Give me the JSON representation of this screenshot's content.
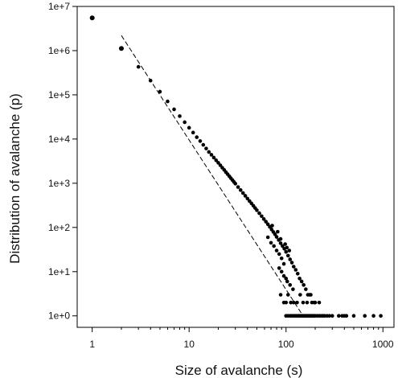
{
  "chart_data": {
    "type": "scatter",
    "title": "",
    "xlabel": "Size of avalanche (s)",
    "ylabel": "Distribution of avalanche (p)",
    "x_scale": "log",
    "y_scale": "log",
    "xlim": [
      0.7,
      1300
    ],
    "ylim": [
      0.55,
      10000000
    ],
    "x_ticks": [
      {
        "value": 1,
        "label": "1"
      },
      {
        "value": 10,
        "label": "10"
      },
      {
        "value": 100,
        "label": "100"
      },
      {
        "value": 1000,
        "label": "1000"
      }
    ],
    "y_ticks": [
      {
        "value": 1,
        "label": "1e+0"
      },
      {
        "value": 10,
        "label": "1e+1"
      },
      {
        "value": 100,
        "label": "1e+2"
      },
      {
        "value": 1000,
        "label": "1e+3"
      },
      {
        "value": 10000,
        "label": "1e+4"
      },
      {
        "value": 100000,
        "label": "1e+5"
      },
      {
        "value": 1000000,
        "label": "1e+6"
      },
      {
        "value": 10000000,
        "label": "1e+7"
      }
    ],
    "grid": false,
    "legend": "none",
    "colors": {
      "points": "#000000",
      "fit_line": "#000000"
    },
    "points": [
      [
        1,
        5500000
      ],
      [
        2,
        1120000
      ],
      [
        3,
        430000
      ],
      [
        4,
        210000
      ],
      [
        5,
        118000
      ],
      [
        6,
        71000
      ],
      [
        7,
        47000
      ],
      [
        8,
        33000
      ],
      [
        9,
        24000
      ],
      [
        10,
        18000
      ],
      [
        11,
        14000
      ],
      [
        12,
        11000
      ],
      [
        13,
        9000
      ],
      [
        14,
        7400
      ],
      [
        15,
        6100
      ],
      [
        16,
        5100
      ],
      [
        17,
        4400
      ],
      [
        18,
        3800
      ],
      [
        19,
        3300
      ],
      [
        20,
        2900
      ],
      [
        21,
        2550
      ],
      [
        22,
        2250
      ],
      [
        23,
        2000
      ],
      [
        24,
        1780
      ],
      [
        25,
        1600
      ],
      [
        26,
        1440
      ],
      [
        27,
        1300
      ],
      [
        28,
        1180
      ],
      [
        29,
        1070
      ],
      [
        30,
        980
      ],
      [
        32,
        820
      ],
      [
        34,
        700
      ],
      [
        36,
        600
      ],
      [
        38,
        520
      ],
      [
        40,
        450
      ],
      [
        42,
        395
      ],
      [
        44,
        350
      ],
      [
        46,
        310
      ],
      [
        48,
        275
      ],
      [
        50,
        245
      ],
      [
        53,
        210
      ],
      [
        56,
        180
      ],
      [
        59,
        155
      ],
      [
        62,
        135
      ],
      [
        65,
        118
      ],
      [
        68,
        103
      ],
      [
        71,
        90
      ],
      [
        74,
        79
      ],
      [
        77,
        70
      ],
      [
        80,
        61
      ],
      [
        84,
        52
      ],
      [
        88,
        44
      ],
      [
        92,
        38
      ],
      [
        96,
        33
      ],
      [
        100,
        28
      ],
      [
        105,
        23
      ],
      [
        110,
        19
      ],
      [
        115,
        16
      ],
      [
        120,
        13
      ],
      [
        126,
        11
      ],
      [
        132,
        9
      ],
      [
        138,
        7
      ],
      [
        145,
        6
      ],
      [
        152,
        5
      ],
      [
        160,
        4
      ],
      [
        168,
        3
      ],
      [
        175,
        3
      ],
      [
        185,
        2
      ],
      [
        195,
        2
      ],
      [
        65,
        60
      ],
      [
        70,
        45
      ],
      [
        75,
        38
      ],
      [
        80,
        30
      ],
      [
        85,
        25
      ],
      [
        90,
        20
      ],
      [
        95,
        15
      ],
      [
        72,
        110
      ],
      [
        82,
        80
      ],
      [
        88,
        55
      ],
      [
        98,
        42
      ],
      [
        102,
        35
      ],
      [
        108,
        30
      ],
      [
        85,
        12
      ],
      [
        90,
        10
      ],
      [
        95,
        8
      ],
      [
        100,
        7
      ],
      [
        103,
        6
      ],
      [
        110,
        5
      ],
      [
        118,
        4
      ],
      [
        88,
        3
      ],
      [
        95,
        2
      ],
      [
        100,
        2
      ],
      [
        105,
        3
      ],
      [
        112,
        2
      ],
      [
        120,
        2
      ],
      [
        130,
        2
      ],
      [
        140,
        3
      ],
      [
        150,
        2
      ],
      [
        165,
        2
      ],
      [
        180,
        3
      ],
      [
        200,
        2
      ],
      [
        220,
        2
      ],
      [
        100,
        1
      ],
      [
        105,
        1
      ],
      [
        110,
        1
      ],
      [
        115,
        1
      ],
      [
        120,
        1
      ],
      [
        125,
        1
      ],
      [
        130,
        1
      ],
      [
        135,
        1
      ],
      [
        140,
        1
      ],
      [
        145,
        1
      ],
      [
        150,
        1
      ],
      [
        155,
        1
      ],
      [
        160,
        1
      ],
      [
        165,
        1
      ],
      [
        170,
        1
      ],
      [
        175,
        1
      ],
      [
        180,
        1
      ],
      [
        185,
        1
      ],
      [
        190,
        1
      ],
      [
        195,
        1
      ],
      [
        200,
        1
      ],
      [
        210,
        1
      ],
      [
        220,
        1
      ],
      [
        230,
        1
      ],
      [
        240,
        1
      ],
      [
        250,
        1
      ],
      [
        265,
        1
      ],
      [
        280,
        1
      ],
      [
        300,
        1
      ],
      [
        350,
        1
      ],
      [
        380,
        1
      ],
      [
        400,
        1
      ],
      [
        420,
        1
      ],
      [
        500,
        1
      ],
      [
        650,
        1
      ],
      [
        800,
        1
      ],
      [
        950,
        1
      ]
    ],
    "fit_line": {
      "style": "dashed",
      "from": [
        2,
        2200000
      ],
      "to": [
        150,
        1
      ]
    }
  }
}
